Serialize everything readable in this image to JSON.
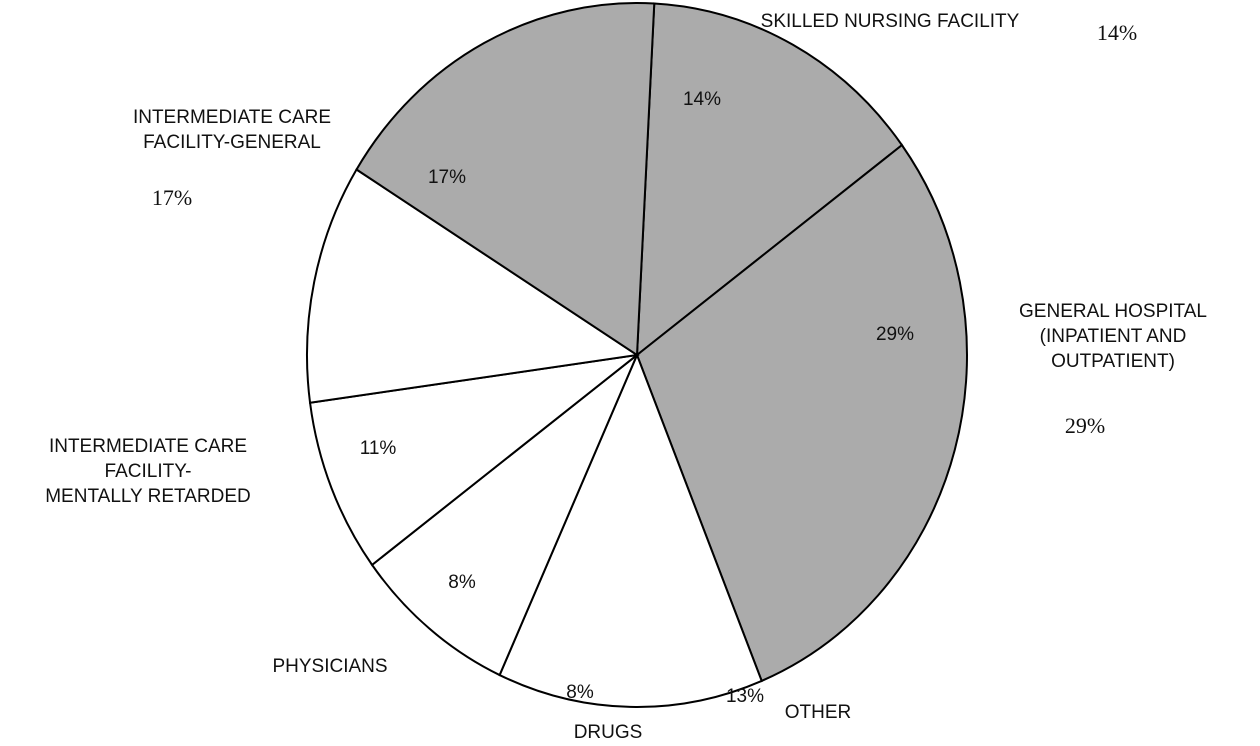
{
  "chart_data": {
    "type": "pie",
    "labels": [
      [
        "SKILLED NURSING FACILITY"
      ],
      [
        "GENERAL HOSPITAL",
        "(INPATIENT AND",
        "OUTPATIENT)"
      ],
      [
        "OTHER"
      ],
      [
        "DRUGS"
      ],
      [
        "PHYSICIANS"
      ],
      [
        "INTERMEDIATE CARE",
        "FACILITY-",
        "MENTALLY RETARDED"
      ],
      [
        "INTERMEDIATE CARE",
        "FACILITY-GENERAL"
      ]
    ],
    "values": [
      14,
      29,
      13,
      8,
      8,
      11,
      17
    ],
    "value_labels": [
      "14%",
      "29%",
      "13%",
      "8%",
      "8%",
      "11%",
      "17%"
    ],
    "colors": [
      "#ababab",
      "#ababab",
      "#ffffff",
      "#ffffff",
      "#ffffff",
      "#ffffff",
      "#ababab"
    ]
  }
}
